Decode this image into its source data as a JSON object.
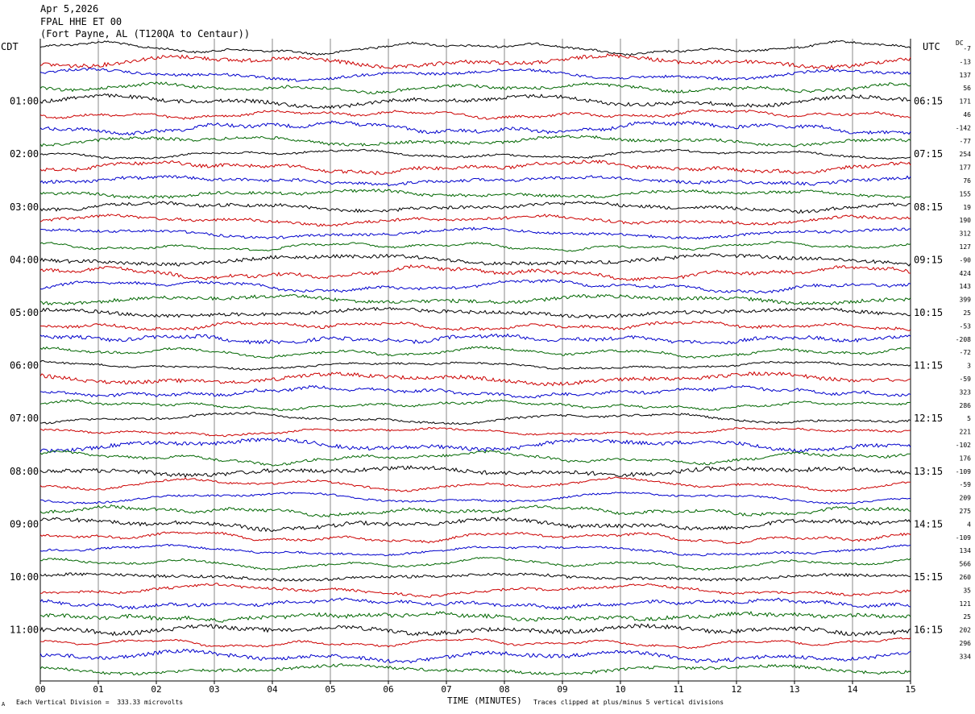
{
  "header": {
    "date": "Apr 5,2026",
    "station": "FPAL HHE ET 00",
    "location": "(Fort Payne, AL (T120QA to Centaur))"
  },
  "left_tz": "CDT",
  "right_tz": "UTC",
  "dc_label": "DC",
  "footer": {
    "scale_note": "Each Vertical Division =  333.33 microvolts",
    "clip_note": "Traces clipped at plus/minus 5 vertical divisions",
    "mark": "A"
  },
  "chart_data": {
    "type": "line",
    "title": "",
    "xlabel": "TIME (MINUTES)",
    "ylabel": "",
    "xlim": [
      0,
      15
    ],
    "x_ticks": [
      "00",
      "01",
      "02",
      "03",
      "04",
      "05",
      "06",
      "07",
      "08",
      "09",
      "10",
      "11",
      "12",
      "13",
      "14",
      "15"
    ],
    "grid": "vertical lines at each minute",
    "trace_colors": [
      "#000000",
      "#cc0000",
      "#0000cc",
      "#006600"
    ],
    "trace_count": 48,
    "left_time_labels": [
      {
        "row": 4,
        "label": "01:00"
      },
      {
        "row": 8,
        "label": "02:00"
      },
      {
        "row": 12,
        "label": "03:00"
      },
      {
        "row": 16,
        "label": "04:00"
      },
      {
        "row": 20,
        "label": "05:00"
      },
      {
        "row": 24,
        "label": "06:00"
      },
      {
        "row": 28,
        "label": "07:00"
      },
      {
        "row": 32,
        "label": "08:00"
      },
      {
        "row": 36,
        "label": "09:00"
      },
      {
        "row": 40,
        "label": "10:00"
      },
      {
        "row": 44,
        "label": "11:00"
      }
    ],
    "right_time_labels": [
      {
        "row": 4,
        "label": "06:15"
      },
      {
        "row": 8,
        "label": "07:15"
      },
      {
        "row": 12,
        "label": "08:15"
      },
      {
        "row": 16,
        "label": "09:15"
      },
      {
        "row": 20,
        "label": "10:15"
      },
      {
        "row": 24,
        "label": "11:15"
      },
      {
        "row": 28,
        "label": "12:15"
      },
      {
        "row": 32,
        "label": "13:15"
      },
      {
        "row": 36,
        "label": "14:15"
      },
      {
        "row": 40,
        "label": "15:15"
      },
      {
        "row": 44,
        "label": "16:15"
      }
    ],
    "dc_offsets": [
      "-7",
      "-13",
      "137",
      "56",
      "171",
      "46",
      "-142",
      "-77",
      "254",
      "177",
      "76",
      "155",
      "19",
      "190",
      "312",
      "127",
      "-90",
      "424",
      "143",
      "399",
      "25",
      "-53",
      "-208",
      "-72",
      "3",
      "-59",
      "323",
      "286",
      "5",
      "221",
      "-102",
      "176",
      "-109",
      "-59",
      "209",
      "275",
      "4",
      "-109",
      "134",
      "566",
      "260",
      "35",
      "121",
      "25",
      "202",
      "296",
      "334"
    ]
  }
}
